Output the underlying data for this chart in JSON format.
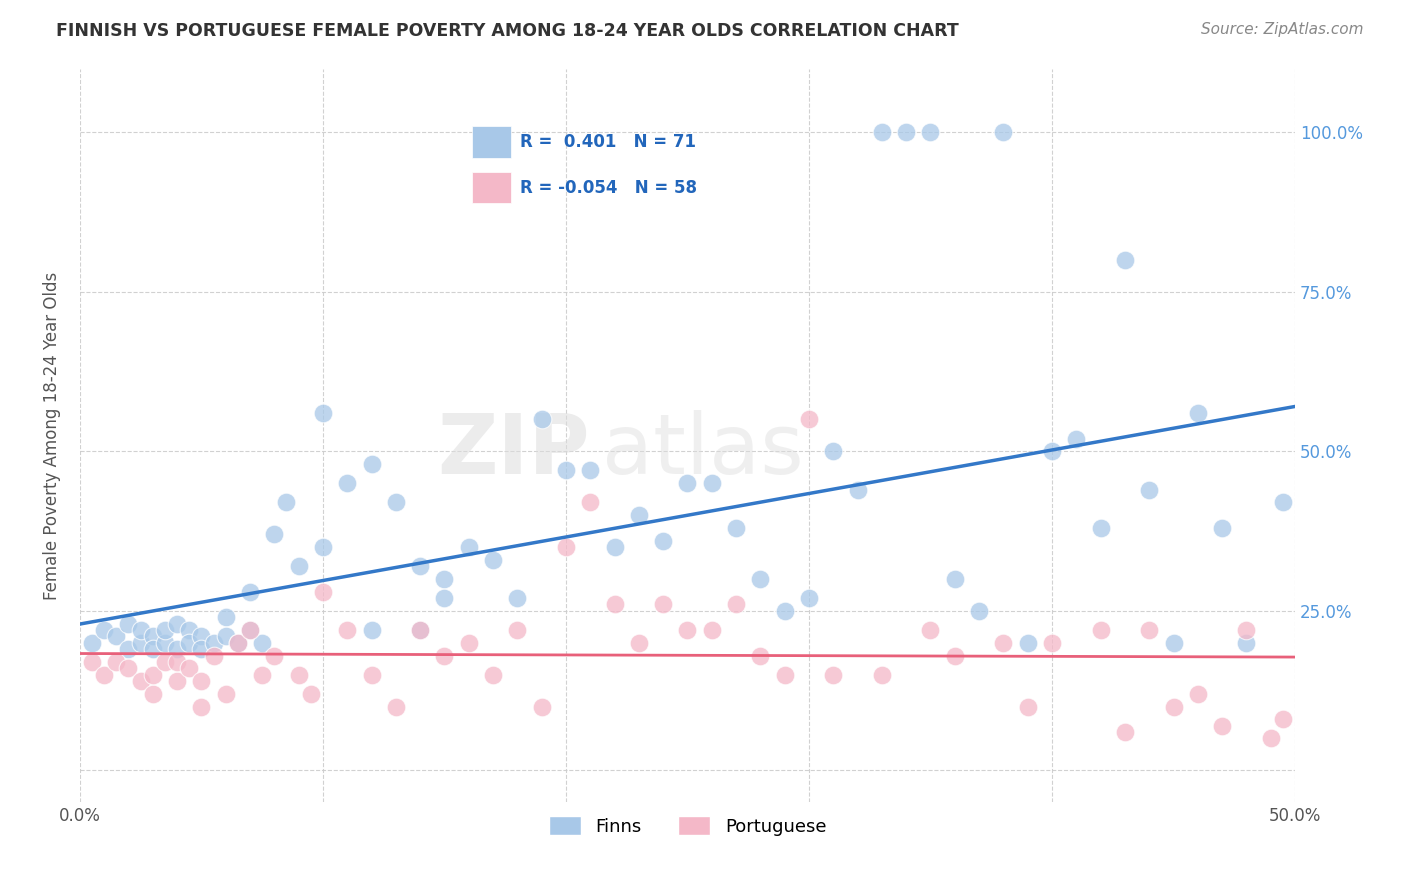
{
  "title": "FINNISH VS PORTUGUESE FEMALE POVERTY AMONG 18-24 YEAR OLDS CORRELATION CHART",
  "source": "Source: ZipAtlas.com",
  "ylabel": "Female Poverty Among 18-24 Year Olds",
  "xlim": [
    0.0,
    0.5
  ],
  "ylim": [
    -0.05,
    1.1
  ],
  "x_tick_positions": [
    0.0,
    0.1,
    0.2,
    0.3,
    0.4,
    0.5
  ],
  "x_tick_labels": [
    "0.0%",
    "",
    "",
    "",
    "",
    "50.0%"
  ],
  "y_tick_positions": [
    0.0,
    0.25,
    0.5,
    0.75,
    1.0
  ],
  "y_tick_labels_right": [
    "",
    "25.0%",
    "50.0%",
    "75.0%",
    "100.0%"
  ],
  "finns_color": "#a8c8e8",
  "portuguese_color": "#f4b8c8",
  "finns_line_color": "#3378c8",
  "portuguese_line_color": "#e8607a",
  "legend_finns_label": "Finns",
  "legend_portuguese_label": "Portuguese",
  "R_finns": 0.401,
  "N_finns": 71,
  "R_portuguese": -0.054,
  "N_portuguese": 58,
  "watermark_zip": "ZIP",
  "watermark_atlas": "atlas",
  "grid_color": "#cccccc",
  "background_color": "#ffffff",
  "title_color": "#333333",
  "source_color": "#888888",
  "ylabel_color": "#555555",
  "right_tick_color": "#5599dd",
  "legend_text_color": "#2266bb",
  "finns_x": [
    0.005,
    0.01,
    0.015,
    0.02,
    0.02,
    0.025,
    0.025,
    0.03,
    0.03,
    0.035,
    0.035,
    0.04,
    0.04,
    0.045,
    0.045,
    0.05,
    0.05,
    0.055,
    0.06,
    0.06,
    0.065,
    0.07,
    0.07,
    0.075,
    0.08,
    0.085,
    0.09,
    0.1,
    0.1,
    0.11,
    0.12,
    0.12,
    0.13,
    0.14,
    0.14,
    0.15,
    0.15,
    0.16,
    0.17,
    0.18,
    0.19,
    0.2,
    0.21,
    0.22,
    0.23,
    0.24,
    0.25,
    0.26,
    0.27,
    0.28,
    0.29,
    0.3,
    0.31,
    0.32,
    0.33,
    0.34,
    0.35,
    0.36,
    0.37,
    0.38,
    0.39,
    0.4,
    0.41,
    0.42,
    0.43,
    0.44,
    0.45,
    0.46,
    0.47,
    0.48,
    0.495
  ],
  "finns_y": [
    0.2,
    0.22,
    0.21,
    0.19,
    0.23,
    0.2,
    0.22,
    0.21,
    0.19,
    0.2,
    0.22,
    0.23,
    0.19,
    0.22,
    0.2,
    0.21,
    0.19,
    0.2,
    0.24,
    0.21,
    0.2,
    0.28,
    0.22,
    0.2,
    0.37,
    0.42,
    0.32,
    0.56,
    0.35,
    0.45,
    0.48,
    0.22,
    0.42,
    0.32,
    0.22,
    0.3,
    0.27,
    0.35,
    0.33,
    0.27,
    0.55,
    0.47,
    0.47,
    0.35,
    0.4,
    0.36,
    0.45,
    0.45,
    0.38,
    0.3,
    0.25,
    0.27,
    0.5,
    0.44,
    1.0,
    1.0,
    1.0,
    0.3,
    0.25,
    1.0,
    0.2,
    0.5,
    0.52,
    0.38,
    0.8,
    0.44,
    0.2,
    0.56,
    0.38,
    0.2,
    0.42
  ],
  "portuguese_x": [
    0.005,
    0.01,
    0.015,
    0.02,
    0.025,
    0.03,
    0.03,
    0.035,
    0.04,
    0.04,
    0.045,
    0.05,
    0.05,
    0.055,
    0.06,
    0.065,
    0.07,
    0.075,
    0.08,
    0.09,
    0.095,
    0.1,
    0.11,
    0.12,
    0.13,
    0.14,
    0.15,
    0.16,
    0.17,
    0.18,
    0.19,
    0.2,
    0.21,
    0.22,
    0.23,
    0.24,
    0.25,
    0.26,
    0.27,
    0.28,
    0.29,
    0.3,
    0.31,
    0.33,
    0.35,
    0.36,
    0.38,
    0.39,
    0.4,
    0.42,
    0.43,
    0.44,
    0.45,
    0.46,
    0.47,
    0.48,
    0.49,
    0.495
  ],
  "portuguese_y": [
    0.17,
    0.15,
    0.17,
    0.16,
    0.14,
    0.12,
    0.15,
    0.17,
    0.14,
    0.17,
    0.16,
    0.14,
    0.1,
    0.18,
    0.12,
    0.2,
    0.22,
    0.15,
    0.18,
    0.15,
    0.12,
    0.28,
    0.22,
    0.15,
    0.1,
    0.22,
    0.18,
    0.2,
    0.15,
    0.22,
    0.1,
    0.35,
    0.42,
    0.26,
    0.2,
    0.26,
    0.22,
    0.22,
    0.26,
    0.18,
    0.15,
    0.55,
    0.15,
    0.15,
    0.22,
    0.18,
    0.2,
    0.1,
    0.2,
    0.22,
    0.06,
    0.22,
    0.1,
    0.12,
    0.07,
    0.22,
    0.05,
    0.08
  ]
}
